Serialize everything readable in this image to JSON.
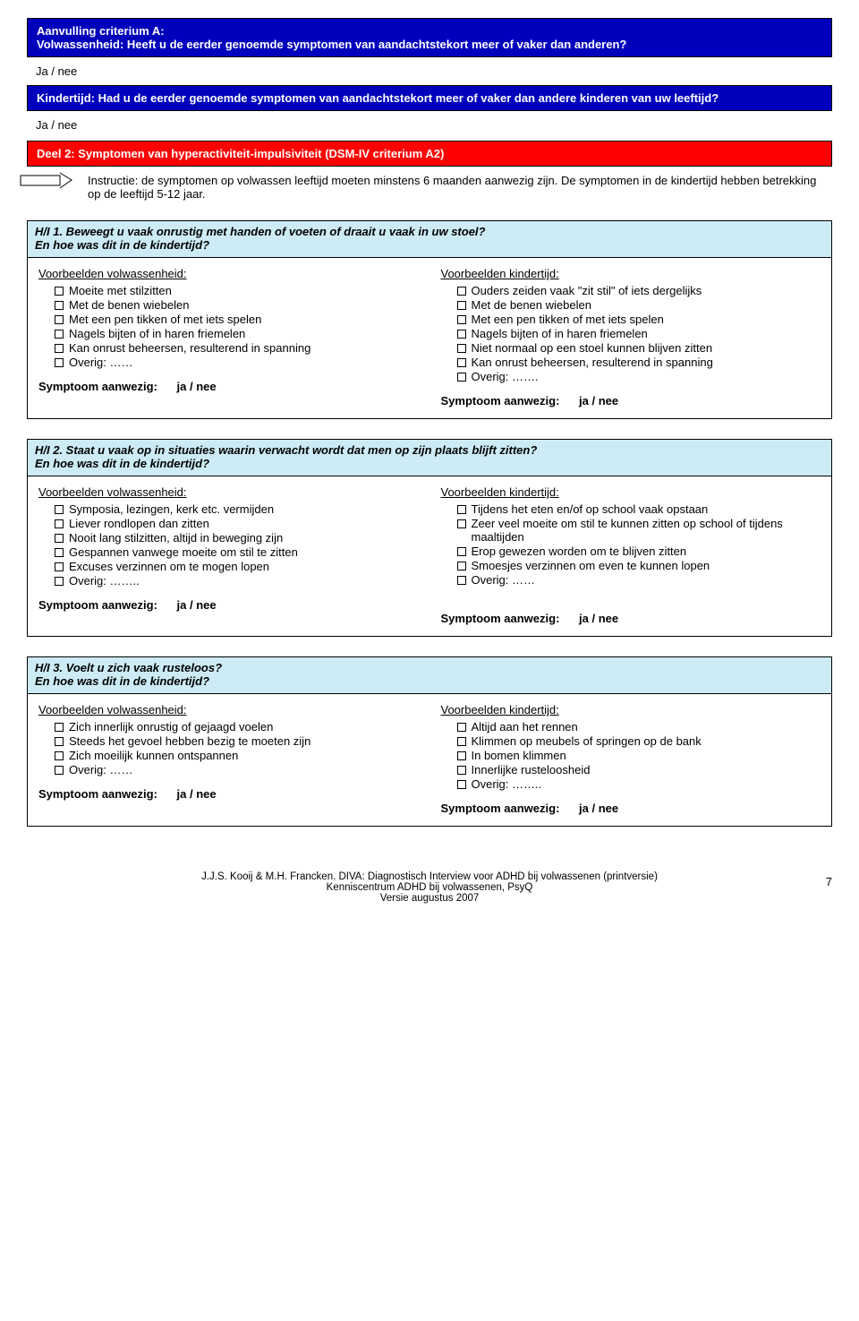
{
  "crit_a": {
    "title1": "Aanvulling criterium A:",
    "title2": "Volwassenheid: Heeft u de eerder genoemde symptomen van aandachtstekort meer of vaker dan anderen?",
    "janee1": "Ja / nee",
    "kinder": "Kindertijd: Had u de eerder genoemde symptomen van aandachtstekort meer of vaker dan andere kinderen van uw leeftijd?",
    "janee2": "Ja / nee"
  },
  "section2": {
    "title": "Deel 2: Symptomen van hyperactiviteit-impulsiviteit (DSM-IV criterium A2)",
    "instr": "Instructie: de symptomen op volwassen leeftijd moeten minstens 6 maanden aanwezig zijn. De symptomen in de kindertijd hebben betrekking op de leeftijd 5-12 jaar."
  },
  "q1": {
    "h1": "H/I 1. Beweegt u vaak onrustig met handen of voeten of draait u vaak in uw stoel?",
    "h2": "En hoe was dit in de kindertijd?",
    "leftTitle": "Voorbeelden volwassenheid:",
    "leftItems": [
      "Moeite met stilzitten",
      "Met de benen wiebelen",
      "Met een pen tikken of met iets spelen",
      "Nagels bijten of in haren friemelen",
      "Kan onrust beheersen, resulterend in spanning",
      "Overig: ……"
    ],
    "rightTitle": "Voorbeelden kindertijd:",
    "rightItems": [
      "Ouders zeiden vaak \"zit stil\" of iets dergelijks",
      "Met de benen wiebelen",
      "Met een pen tikken of met iets spelen",
      "Nagels bijten of in haren friemelen",
      "Niet normaal op een stoel kunnen blijven zitten",
      "Kan onrust beheersen, resulterend in spanning",
      "Overig: ……."
    ],
    "sympLabel": "Symptoom aanwezig:",
    "sympVal": "ja / nee"
  },
  "q2": {
    "h1": "H/I 2. Staat u vaak op in situaties waarin verwacht wordt dat men op zijn plaats blijft zitten?",
    "h2": "En hoe was dit in de kindertijd?",
    "leftTitle": "Voorbeelden volwassenheid:",
    "leftItems": [
      "Symposia, lezingen, kerk etc. vermijden",
      "Liever rondlopen dan zitten",
      "Nooit lang stilzitten, altijd in beweging zijn",
      "Gespannen vanwege moeite om stil te zitten",
      "Excuses verzinnen om te mogen lopen",
      "Overig: …….."
    ],
    "rightTitle": "Voorbeelden kindertijd:",
    "rightItems": [
      "Tijdens het eten en/of op school vaak opstaan",
      "Zeer veel moeite om stil te kunnen zitten op school of tijdens maaltijden",
      "Erop gewezen worden om te blijven zitten",
      "Smoesjes verzinnen om even te kunnen lopen",
      "Overig: ……"
    ],
    "sympLabel": "Symptoom aanwezig:",
    "sympVal": "ja / nee"
  },
  "q3": {
    "h1": "H/I 3. Voelt u zich vaak rusteloos?",
    "h2": "En hoe was dit in de kindertijd?",
    "leftTitle": "Voorbeelden volwassenheid:",
    "leftItems": [
      "Zich innerlijk onrustig of gejaagd voelen",
      "Steeds het gevoel hebben bezig te moeten zijn",
      "Zich moeilijk kunnen ontspannen",
      "Overig: ……"
    ],
    "rightTitle": "Voorbeelden kindertijd:",
    "rightItems": [
      "Altijd aan het rennen",
      "Klimmen op meubels of springen op de bank",
      "In bomen klimmen",
      "Innerlijke rusteloosheid",
      "Overig: …….."
    ],
    "sympLabel": "Symptoom aanwezig:",
    "sympVal": "ja / nee"
  },
  "footer": {
    "l1": "J.J.S. Kooij & M.H. Francken. DIVA: Diagnostisch Interview voor ADHD bij volwassenen (printversie)",
    "l2": "Kenniscentrum ADHD bij volwassenen, PsyQ",
    "l3": "Versie augustus 2007",
    "page": "7"
  }
}
